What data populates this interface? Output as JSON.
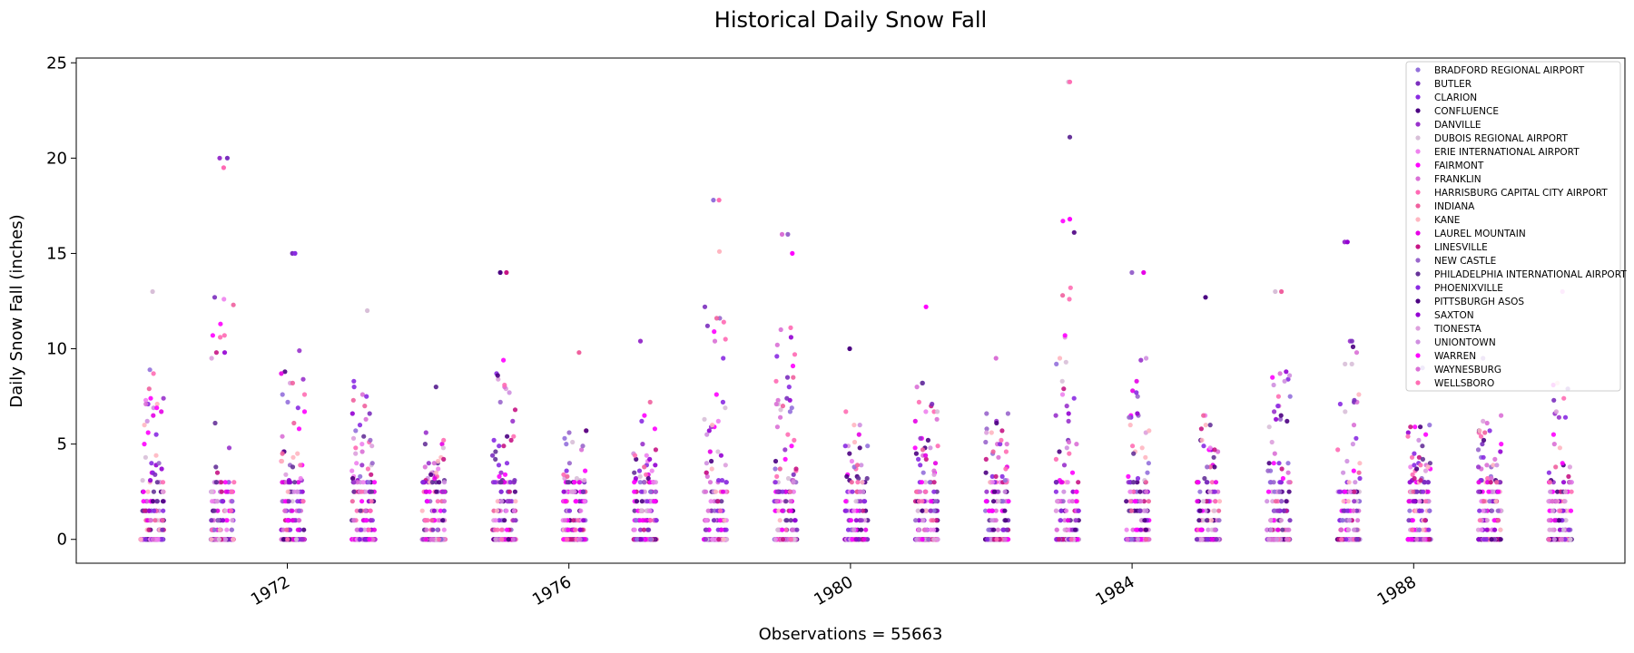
{
  "chart_data": {
    "type": "scatter",
    "title": "Historical Daily Snow Fall",
    "ylabel": "Daily Snow Fall (inches)",
    "xlabel": "Observations = 55663",
    "ylim": [
      -1.25,
      25.25
    ],
    "xlim": [
      "1969-01-01",
      "1991-01-01"
    ],
    "y_ticks": [
      0,
      5,
      10,
      15,
      20,
      25
    ],
    "x_ticks": [
      {
        "date": "1972-01-01",
        "label": "1972"
      },
      {
        "date": "1976-01-01",
        "label": "1976"
      },
      {
        "date": "1980-01-01",
        "label": "1980"
      },
      {
        "date": "1984-01-01",
        "label": "1984"
      },
      {
        "date": "1988-01-01",
        "label": "1988"
      }
    ],
    "grid": false,
    "legend_position": "top-right",
    "observations": 55663,
    "winter_seasons": [
      {
        "start": "1969-12-01",
        "end": "1970-03-31",
        "max": 13.0
      },
      {
        "start": "1970-12-01",
        "end": "1971-03-31",
        "max": 20.0
      },
      {
        "start": "1971-12-01",
        "end": "1972-03-31",
        "max": 15.0
      },
      {
        "start": "1972-12-01",
        "end": "1973-03-31",
        "max": 12.0
      },
      {
        "start": "1973-12-01",
        "end": "1974-03-31",
        "max": 8.0
      },
      {
        "start": "1974-12-01",
        "end": "1975-03-31",
        "max": 14.0
      },
      {
        "start": "1975-12-01",
        "end": "1976-03-31",
        "max": 9.8
      },
      {
        "start": "1976-12-01",
        "end": "1977-03-31",
        "max": 10.4
      },
      {
        "start": "1977-12-01",
        "end": "1978-03-31",
        "max": 17.8
      },
      {
        "start": "1978-12-01",
        "end": "1979-03-31",
        "max": 16.0
      },
      {
        "start": "1979-12-01",
        "end": "1980-03-31",
        "max": 10.0
      },
      {
        "start": "1980-12-01",
        "end": "1981-03-31",
        "max": 12.2
      },
      {
        "start": "1981-12-01",
        "end": "1982-03-31",
        "max": 9.5
      },
      {
        "start": "1982-12-01",
        "end": "1983-03-31",
        "max": 24.0
      },
      {
        "start": "1983-12-01",
        "end": "1984-03-31",
        "max": 14.0
      },
      {
        "start": "1984-12-01",
        "end": "1985-03-31",
        "max": 12.7
      },
      {
        "start": "1985-12-01",
        "end": "1986-03-31",
        "max": 13.0
      },
      {
        "start": "1986-12-01",
        "end": "1987-03-31",
        "max": 15.6
      },
      {
        "start": "1987-12-01",
        "end": "1988-03-31",
        "max": 9.0
      },
      {
        "start": "1988-12-01",
        "end": "1989-03-31",
        "max": 9.5
      },
      {
        "start": "1989-12-01",
        "end": "1990-03-31",
        "max": 13.0
      }
    ],
    "outliers": [
      {
        "date": "1971-01-15",
        "y": 20.0,
        "series": "DANVILLE"
      },
      {
        "date": "1971-02-05",
        "y": 19.5,
        "series": "HARRISBURG CAPITAL CITY AIRPORT"
      },
      {
        "date": "1972-02-10",
        "y": 15.0,
        "series": "PHOENIXVILLE"
      },
      {
        "date": "1975-01-10",
        "y": 14.0,
        "series": "PITTSBURGH ASOS"
      },
      {
        "date": "1978-01-20",
        "y": 17.8,
        "series": "BRADFORD REGIONAL AIRPORT"
      },
      {
        "date": "1978-02-20",
        "y": 15.1,
        "series": "KANE"
      },
      {
        "date": "1979-02-10",
        "y": 16.0,
        "series": "NEW CASTLE"
      },
      {
        "date": "1979-03-05",
        "y": 15.0,
        "series": "FAIRMONT"
      },
      {
        "date": "1983-02-12",
        "y": 24.0,
        "series": "WELLSBORO"
      },
      {
        "date": "1983-02-12",
        "y": 21.1,
        "series": "PHILADELPHIA INTERNATIONAL AIRPORT"
      },
      {
        "date": "1983-02-12",
        "y": 16.8,
        "series": "WARREN"
      },
      {
        "date": "1987-01-22",
        "y": 15.6,
        "series": "SAXTON"
      },
      {
        "date": "1986-02-14",
        "y": 13.0,
        "series": "INDIANA"
      },
      {
        "date": "1984-03-01",
        "y": 14.0,
        "series": "LAUREL MOUNTAIN"
      }
    ],
    "series": [
      {
        "name": "BRADFORD REGIONAL AIRPORT",
        "color": "#9370db"
      },
      {
        "name": "BUTLER",
        "color": "#7b2fbe"
      },
      {
        "name": "CLARION",
        "color": "#8a2be2"
      },
      {
        "name": "CONFLUENCE",
        "color": "#4b0082"
      },
      {
        "name": "DANVILLE",
        "color": "#9932cc"
      },
      {
        "name": "DUBOIS REGIONAL AIRPORT",
        "color": "#d8bfd8"
      },
      {
        "name": "ERIE INTERNATIONAL AIRPORT",
        "color": "#ee82ee"
      },
      {
        "name": "FAIRMONT",
        "color": "#ff00ff"
      },
      {
        "name": "FRANKLIN",
        "color": "#da70d6"
      },
      {
        "name": "HARRISBURG CAPITAL CITY AIRPORT",
        "color": "#ff69b4"
      },
      {
        "name": "INDIANA",
        "color": "#f0609e"
      },
      {
        "name": "KANE",
        "color": "#ffb6c1"
      },
      {
        "name": "LAUREL MOUNTAIN",
        "color": "#e600e6"
      },
      {
        "name": "LINESVILLE",
        "color": "#c71585"
      },
      {
        "name": "NEW CASTLE",
        "color": "#9966cc"
      },
      {
        "name": "PHILADELPHIA INTERNATIONAL AIRPORT",
        "color": "#663399"
      },
      {
        "name": "PHOENIXVILLE",
        "color": "#8a2be2"
      },
      {
        "name": "PITTSBURGH ASOS",
        "color": "#4b0082"
      },
      {
        "name": "SAXTON",
        "color": "#9400d3"
      },
      {
        "name": "TIONESTA",
        "color": "#dda0dd"
      },
      {
        "name": "UNIONTOWN",
        "color": "#cf8fe0"
      },
      {
        "name": "WARREN",
        "color": "#ff00ff"
      },
      {
        "name": "WAYNESBURG",
        "color": "#da70d6"
      },
      {
        "name": "WELLSBORO",
        "color": "#ff6eb4"
      }
    ]
  }
}
